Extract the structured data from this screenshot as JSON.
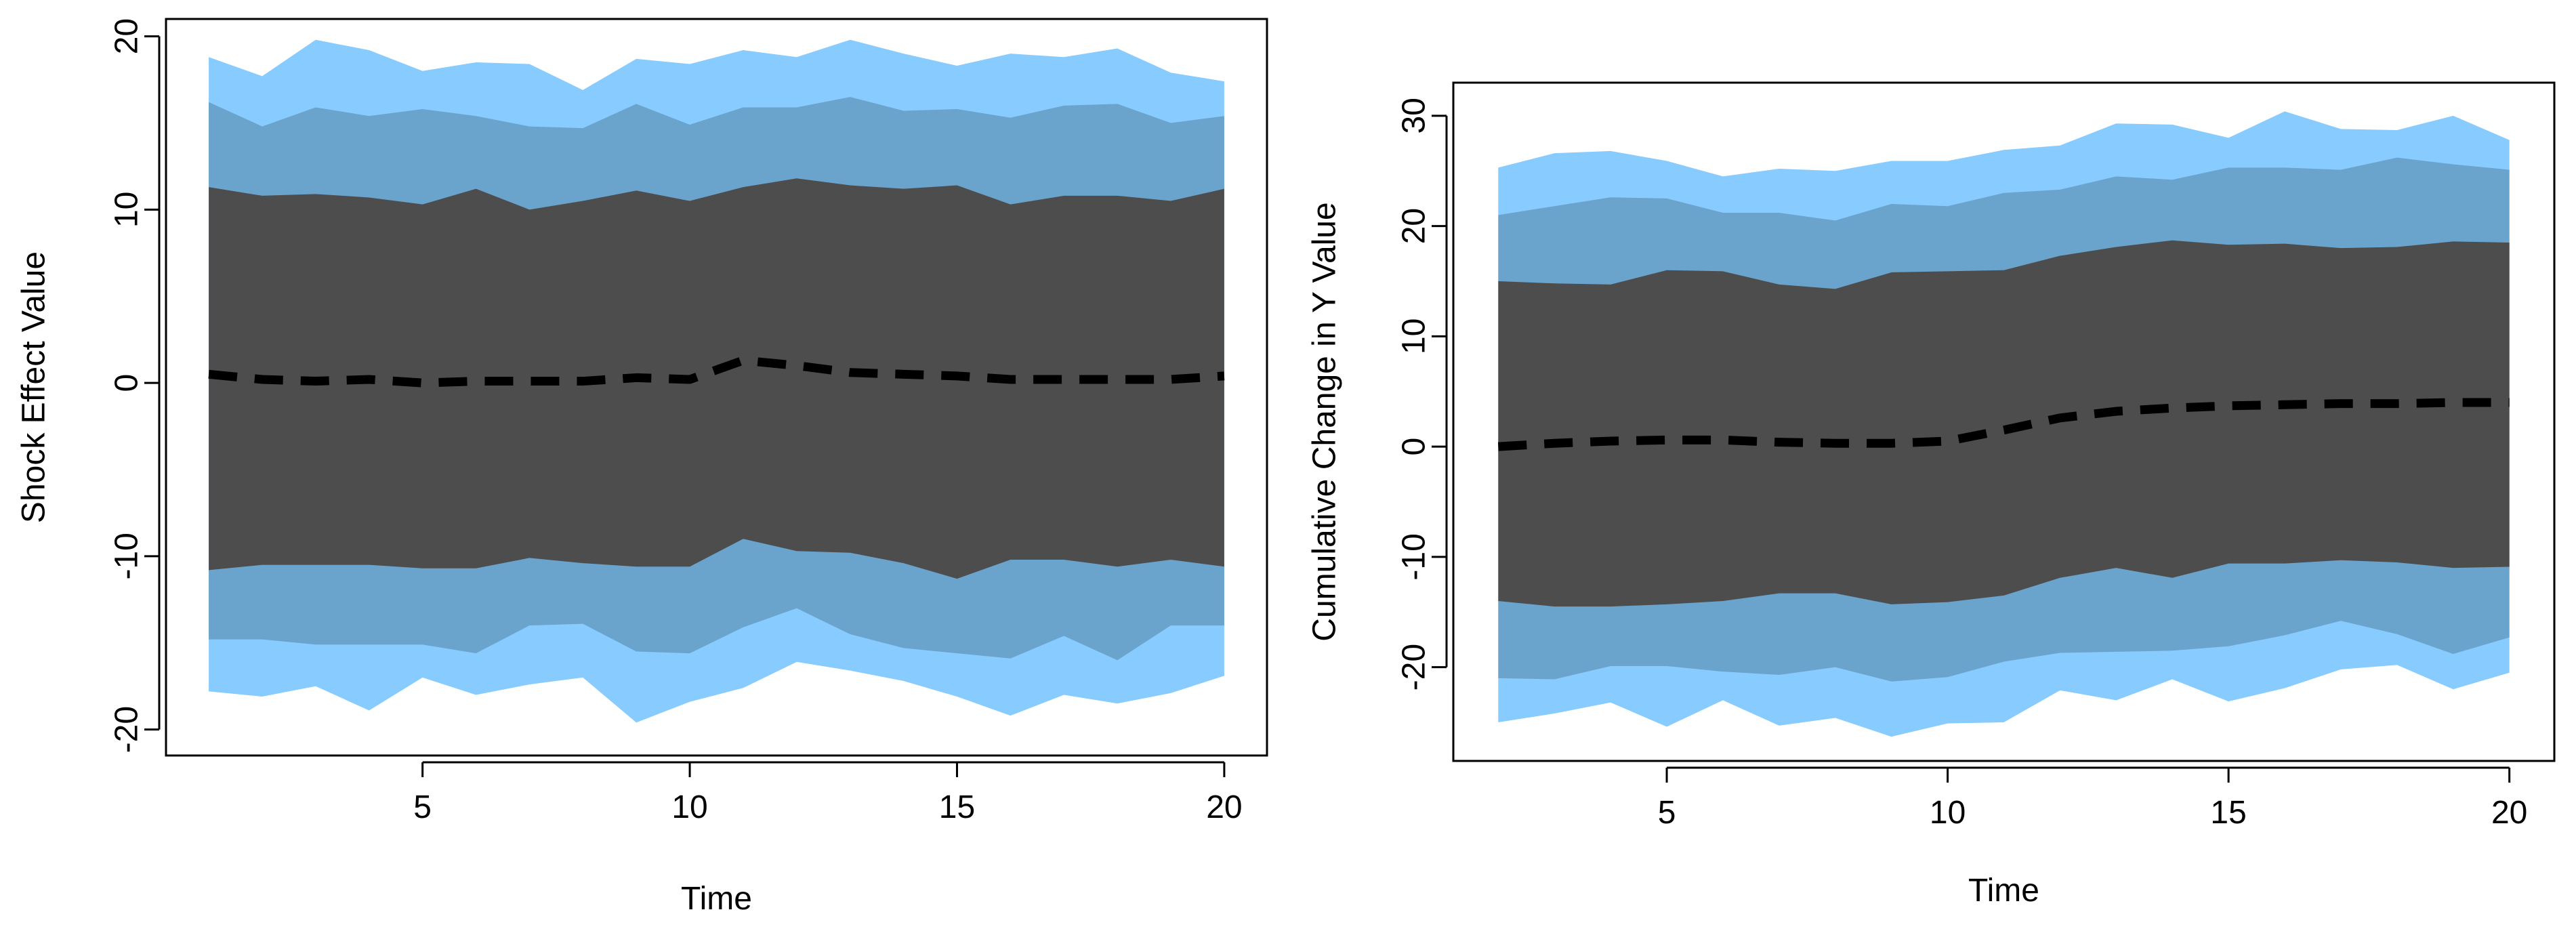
{
  "chart_data": [
    {
      "type": "area",
      "title": "",
      "xlabel": "Time",
      "ylabel": "Shock Effect Value",
      "xlim": [
        0.2,
        20.8
      ],
      "ylim": [
        -21.5,
        21
      ],
      "xticks": [
        5,
        10,
        15,
        20
      ],
      "yticks": [
        -20,
        -10,
        0,
        10,
        20
      ],
      "x": [
        1,
        2,
        3,
        4,
        5,
        6,
        7,
        8,
        9,
        10,
        11,
        12,
        13,
        14,
        15,
        16,
        17,
        18,
        19,
        20
      ],
      "bands": [
        {
          "name": "outer",
          "color": "#87cbff",
          "upper": [
            18.8,
            17.7,
            19.8,
            19.2,
            18.0,
            18.5,
            18.4,
            16.9,
            18.7,
            18.4,
            19.2,
            18.8,
            19.8,
            19.0,
            18.3,
            19.0,
            18.8,
            19.3,
            17.9,
            17.4
          ],
          "lower": [
            -17.8,
            -18.1,
            -17.5,
            -18.9,
            -17.0,
            -18.0,
            -17.4,
            -17.0,
            -19.6,
            -18.4,
            -17.6,
            -16.1,
            -16.6,
            -17.2,
            -18.1,
            -19.2,
            -18.0,
            -18.5,
            -17.9,
            -16.9
          ]
        },
        {
          "name": "middle",
          "color": "#6aa3cb",
          "upper": [
            16.2,
            14.8,
            15.9,
            15.4,
            15.8,
            15.4,
            14.8,
            14.7,
            16.1,
            14.9,
            15.9,
            15.9,
            16.5,
            15.7,
            15.8,
            15.3,
            16.0,
            16.1,
            15.0,
            15.4
          ],
          "lower": [
            -14.8,
            -14.8,
            -15.1,
            -15.1,
            -15.1,
            -15.6,
            -14.0,
            -13.9,
            -15.5,
            -15.6,
            -14.1,
            -13.0,
            -14.5,
            -15.3,
            -15.6,
            -15.9,
            -14.6,
            -16.0,
            -14.0,
            -14.0
          ]
        },
        {
          "name": "inner",
          "color": "#4d4d4d",
          "upper": [
            11.3,
            10.8,
            10.9,
            10.7,
            10.3,
            11.2,
            10.0,
            10.5,
            11.1,
            10.5,
            11.3,
            11.8,
            11.4,
            11.2,
            11.4,
            10.3,
            10.8,
            10.8,
            10.5,
            11.2
          ],
          "lower": [
            -10.8,
            -10.5,
            -10.5,
            -10.5,
            -10.7,
            -10.7,
            -10.1,
            -10.4,
            -10.6,
            -10.6,
            -9.0,
            -9.7,
            -9.8,
            -10.4,
            -11.3,
            -10.2,
            -10.2,
            -10.6,
            -10.2,
            -10.6
          ]
        }
      ],
      "median": {
        "color": "#000000",
        "style": "dashed",
        "values": [
          0.5,
          0.2,
          0.1,
          0.2,
          0.0,
          0.1,
          0.1,
          0.1,
          0.3,
          0.2,
          1.3,
          1.0,
          0.6,
          0.5,
          0.4,
          0.2,
          0.2,
          0.2,
          0.2,
          0.4
        ]
      }
    },
    {
      "type": "area",
      "title": "",
      "xlabel": "Time",
      "ylabel": "Cumulative Change in Y Value",
      "xlim": [
        1.2,
        20.8
      ],
      "ylim": [
        -28.5,
        33
      ],
      "xticks": [
        5,
        10,
        15,
        20
      ],
      "yticks": [
        -20,
        -10,
        0,
        10,
        20,
        30
      ],
      "x": [
        2,
        3,
        4,
        5,
        6,
        7,
        8,
        9,
        10,
        11,
        12,
        13,
        14,
        15,
        16,
        17,
        18,
        19,
        20
      ],
      "bands": [
        {
          "name": "outer",
          "color": "#87cbff",
          "upper": [
            25.3,
            26.6,
            26.8,
            25.9,
            24.5,
            25.2,
            25.0,
            25.9,
            25.9,
            26.9,
            27.3,
            29.3,
            29.2,
            28.0,
            30.4,
            28.8,
            28.7,
            30.0,
            27.8
          ],
          "lower": [
            -25.0,
            -24.2,
            -23.2,
            -25.4,
            -23.0,
            -25.3,
            -24.6,
            -26.3,
            -25.1,
            -25.0,
            -22.1,
            -23.0,
            -21.1,
            -23.1,
            -21.9,
            -20.2,
            -19.8,
            -22.0,
            -20.5
          ]
        },
        {
          "name": "middle",
          "color": "#6aa3cb",
          "upper": [
            21.0,
            21.8,
            22.6,
            22.5,
            21.2,
            21.2,
            20.5,
            22.0,
            21.8,
            23.0,
            23.3,
            24.5,
            24.2,
            25.3,
            25.3,
            25.1,
            26.2,
            25.6,
            25.1
          ],
          "lower": [
            -21.0,
            -21.1,
            -19.9,
            -19.9,
            -20.4,
            -20.7,
            -20.0,
            -21.3,
            -20.9,
            -19.5,
            -18.7,
            -18.6,
            -18.5,
            -18.1,
            -17.1,
            -15.8,
            -17.0,
            -18.8,
            -17.3
          ]
        },
        {
          "name": "inner",
          "color": "#4d4d4d",
          "upper": [
            15.0,
            14.8,
            14.7,
            16.0,
            15.9,
            14.7,
            14.3,
            15.8,
            15.9,
            16.0,
            17.3,
            18.1,
            18.7,
            18.3,
            18.4,
            18.0,
            18.1,
            18.6,
            18.5
          ],
          "lower": [
            -14.0,
            -14.5,
            -14.5,
            -14.3,
            -14.0,
            -13.3,
            -13.3,
            -14.3,
            -14.1,
            -13.5,
            -11.9,
            -11.0,
            -11.9,
            -10.6,
            -10.6,
            -10.3,
            -10.5,
            -11.0,
            -10.9
          ]
        }
      ],
      "median": {
        "color": "#000000",
        "style": "dashed",
        "values": [
          0.0,
          0.3,
          0.5,
          0.6,
          0.6,
          0.4,
          0.3,
          0.3,
          0.5,
          1.5,
          2.6,
          3.2,
          3.5,
          3.7,
          3.8,
          3.9,
          3.9,
          4.0,
          4.0
        ]
      }
    }
  ]
}
